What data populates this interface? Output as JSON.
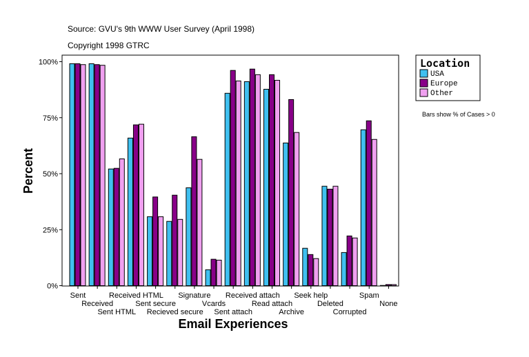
{
  "header": {
    "source": "Source: GVU's 9th WWW User Survey (April 1998)",
    "copyright": "Copyright 1998 GTRC"
  },
  "note": "Bars show % of Cases > 0",
  "chart_data": {
    "type": "bar",
    "xlabel": "Email Experiences",
    "ylabel": "Percent",
    "ylim": [
      0,
      100
    ],
    "yticks": [
      "0%",
      "25%",
      "50%",
      "75%",
      "100%"
    ],
    "grid": false,
    "legend": {
      "title": "Location",
      "placement": "right"
    },
    "categories": [
      "Sent",
      "Received",
      "Sent HTML",
      "Received HTML",
      "Sent secure",
      "Recieved secure",
      "Signature",
      "Vcards",
      "Sent attach",
      "Received attach",
      "Read attach",
      "Archive",
      "Seek help",
      "Deleted",
      "Corrupted",
      "Spam",
      "None"
    ],
    "series": [
      {
        "name": "USA",
        "color": "#40c0f0",
        "values": [
          99.1,
          99.1,
          52.1,
          65.9,
          30.8,
          28.7,
          43.7,
          7.1,
          85.9,
          91.1,
          87.7,
          63.7,
          16.7,
          44.4,
          14.8,
          69.6,
          0.1
        ]
      },
      {
        "name": "Europe",
        "color": "#880088",
        "values": [
          99.1,
          98.7,
          52.4,
          71.8,
          39.6,
          40.4,
          66.5,
          11.8,
          96.1,
          96.7,
          94.2,
          83.1,
          13.9,
          43.1,
          22.2,
          73.6,
          0.5
        ]
      },
      {
        "name": "Other",
        "color": "#f0a0f0",
        "values": [
          98.7,
          98.4,
          56.6,
          72.1,
          30.8,
          29.6,
          56.4,
          11.4,
          91.4,
          94.2,
          91.7,
          68.4,
          12.1,
          44.4,
          21.3,
          65.3,
          0.5
        ]
      }
    ]
  }
}
